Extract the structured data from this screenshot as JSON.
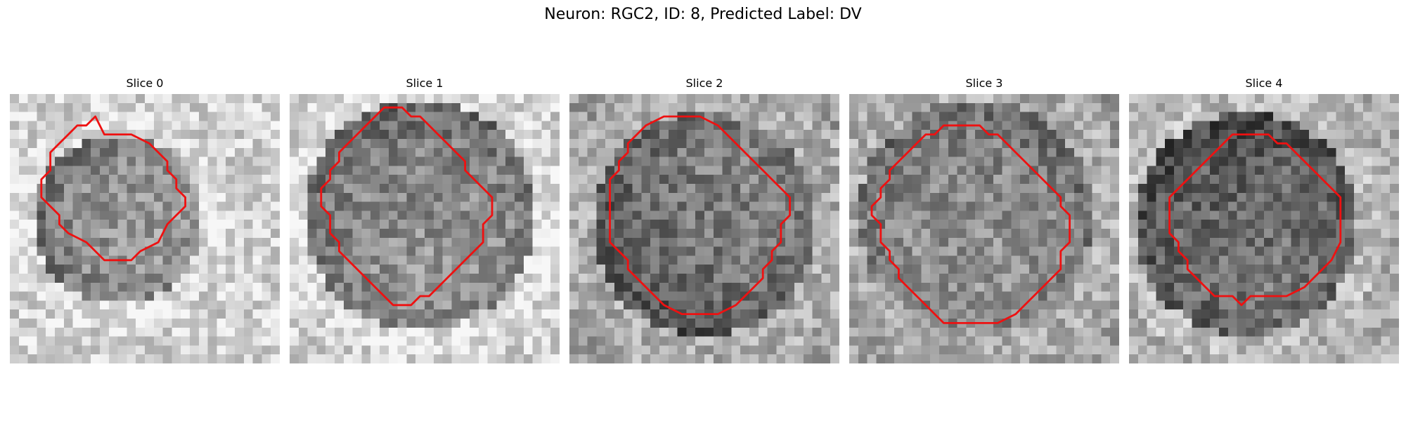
{
  "figure": {
    "title": "Neuron: RGC2, ID: 8, Predicted Label: DV",
    "contour_color": "#ee1111"
  },
  "panels": [
    {
      "title": "Slice 0"
    },
    {
      "title": "Slice 1"
    },
    {
      "title": "Slice 2"
    },
    {
      "title": "Slice 3"
    },
    {
      "title": "Slice 4"
    }
  ]
}
